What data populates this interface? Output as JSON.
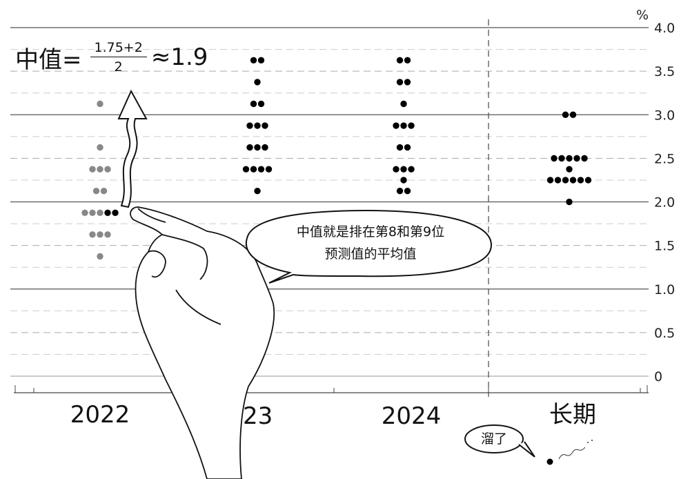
{
  "chart_data": {
    "type": "scatter",
    "subtype": "dot-plot",
    "unit_label": "%",
    "ylim": [
      0,
      4.0
    ],
    "y_ticks": [
      "0",
      "0.5",
      "1.0",
      "1.5",
      "2.0",
      "2.5",
      "3.0",
      "3.5",
      "4.0"
    ],
    "grid": "solid at whole numbers, dashed at quarter steps",
    "categories": [
      "2022",
      "2023",
      "2024",
      "长期"
    ],
    "colors": {
      "dot": "#000000",
      "dot_muted": "#888888",
      "grid": "#999999"
    },
    "series": [
      {
        "category": "2022",
        "dots": [
          {
            "y": 3.125,
            "count": 1,
            "muted": 1
          },
          {
            "y": 2.625,
            "count": 1,
            "muted": 1
          },
          {
            "y": 2.375,
            "count": 3,
            "muted": 3
          },
          {
            "y": 2.125,
            "count": 2,
            "muted": 2
          },
          {
            "y": 1.875,
            "count": 5,
            "muted": 3
          },
          {
            "y": 1.625,
            "count": 3,
            "muted": 3
          },
          {
            "y": 1.375,
            "count": 1,
            "muted": 1
          }
        ]
      },
      {
        "category": "2023",
        "dots": [
          {
            "y": 3.625,
            "count": 2,
            "muted": 0
          },
          {
            "y": 3.375,
            "count": 1,
            "muted": 0
          },
          {
            "y": 3.125,
            "count": 2,
            "muted": 0
          },
          {
            "y": 2.875,
            "count": 3,
            "muted": 0
          },
          {
            "y": 2.625,
            "count": 3,
            "muted": 0
          },
          {
            "y": 2.375,
            "count": 4,
            "muted": 0
          },
          {
            "y": 2.125,
            "count": 1,
            "muted": 0
          }
        ]
      },
      {
        "category": "2024",
        "dots": [
          {
            "y": 3.625,
            "count": 2,
            "muted": 0
          },
          {
            "y": 3.375,
            "count": 2,
            "muted": 0
          },
          {
            "y": 3.125,
            "count": 1,
            "muted": 0
          },
          {
            "y": 2.875,
            "count": 3,
            "muted": 0
          },
          {
            "y": 2.625,
            "count": 2,
            "muted": 0
          },
          {
            "y": 2.375,
            "count": 3,
            "muted": 0
          },
          {
            "y": 2.25,
            "count": 1,
            "muted": 0
          },
          {
            "y": 2.125,
            "count": 2,
            "muted": 0
          }
        ]
      },
      {
        "category": "长期",
        "dots": [
          {
            "y": 3.0,
            "count": 2,
            "muted": 0
          },
          {
            "y": 2.5,
            "count": 5,
            "muted": 0
          },
          {
            "y": 2.375,
            "count": 1,
            "muted": 0
          },
          {
            "y": 2.25,
            "count": 6,
            "muted": 0
          },
          {
            "y": 2.0,
            "count": 1,
            "muted": 0
          }
        ]
      }
    ],
    "annotations": {
      "formula_lhs": "中值=",
      "formula_numerator": "1.75+2",
      "formula_denominator": "2",
      "formula_result": "≈1.9",
      "speech_bubble_line1": "中值就是排在第8和第9位",
      "speech_bubble_line2": "预测值的平均值",
      "runaway_bubble": "溜了"
    },
    "decorations": [
      "pointing-hand-illustration",
      "wavy-up-arrow",
      "runaway-dot"
    ]
  }
}
